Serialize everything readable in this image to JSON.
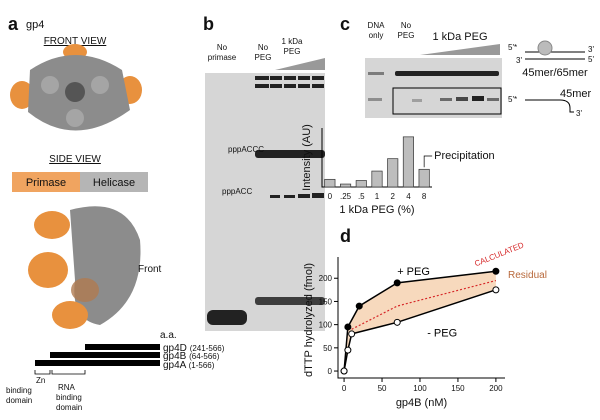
{
  "panel_a": {
    "letter": "a",
    "protein": "gp4",
    "front_view": "FRONT VIEW",
    "side_view": "SIDE VIEW",
    "primase": "Primase",
    "helicase": "Helicase",
    "front": "Front",
    "aa": "a.a.",
    "constructs": [
      {
        "name": "gp4D",
        "range": "(241-566)"
      },
      {
        "name": "gp4B",
        "range": "(64-566)"
      },
      {
        "name": "gp4A",
        "range": "(1-566)"
      }
    ],
    "zn_domain": [
      "Zn",
      "binding",
      "domain"
    ],
    "rna_domain": [
      "RNA",
      "binding",
      "domain"
    ]
  },
  "panel_b": {
    "letter": "b",
    "no_primase": [
      "No",
      "primase"
    ],
    "no_peg": [
      "No",
      "PEG"
    ],
    "peg": [
      "1 kDa",
      "PEG"
    ],
    "band_1": "pppACCC",
    "band_2": "pppACC"
  },
  "panel_c": {
    "letter": "c",
    "dna_only": [
      "DNA",
      "only"
    ],
    "no_peg": [
      "No",
      "PEG"
    ],
    "peg": "1 kDa PEG",
    "five_prime": "5'*",
    "three_prime": "3'",
    "five": "5'",
    "duplex": "45mer/65mer",
    "single": "45mer"
  },
  "panel_d": {
    "letter": "d",
    "residual": "Residual"
  },
  "chart_data": [
    {
      "type": "bar",
      "y_label": "Intensity (AU)",
      "x_label": "1 kDa PEG (%)",
      "annotation": "Precipitation",
      "categories": [
        "0",
        ".25",
        ".5",
        "1",
        "2",
        "4",
        "8"
      ],
      "values": [
        13,
        5,
        11,
        27,
        48,
        85,
        30
      ],
      "color": "#bdbdbd",
      "ylim": [
        0,
        100
      ]
    },
    {
      "type": "line",
      "y_label": "dTTP hydrolyzed (fmol)",
      "x_label": "gp4B (nM)",
      "xlim": [
        -8,
        212
      ],
      "ylim": [
        -15,
        235
      ],
      "xticks": [
        0,
        50,
        100,
        150,
        200
      ],
      "yticks": [
        0,
        50,
        100,
        150,
        200
      ],
      "series": [
        {
          "name": "+ PEG",
          "color": "#000000",
          "markers": "filled",
          "x": [
            0,
            5,
            20,
            70,
            200
          ],
          "values": [
            0,
            95,
            140,
            190,
            215
          ]
        },
        {
          "name": "- PEG",
          "color": "#000000",
          "markers": "open",
          "x": [
            0,
            5,
            10,
            70,
            200
          ],
          "values": [
            0,
            45,
            80,
            105,
            175
          ]
        },
        {
          "name": "CALCULATED",
          "color": "#d62728",
          "markers": "none",
          "dashed": true,
          "x": [
            10,
            70,
            200
          ],
          "values": [
            90,
            140,
            195
          ]
        }
      ],
      "fill": "#f7d9bd"
    }
  ]
}
